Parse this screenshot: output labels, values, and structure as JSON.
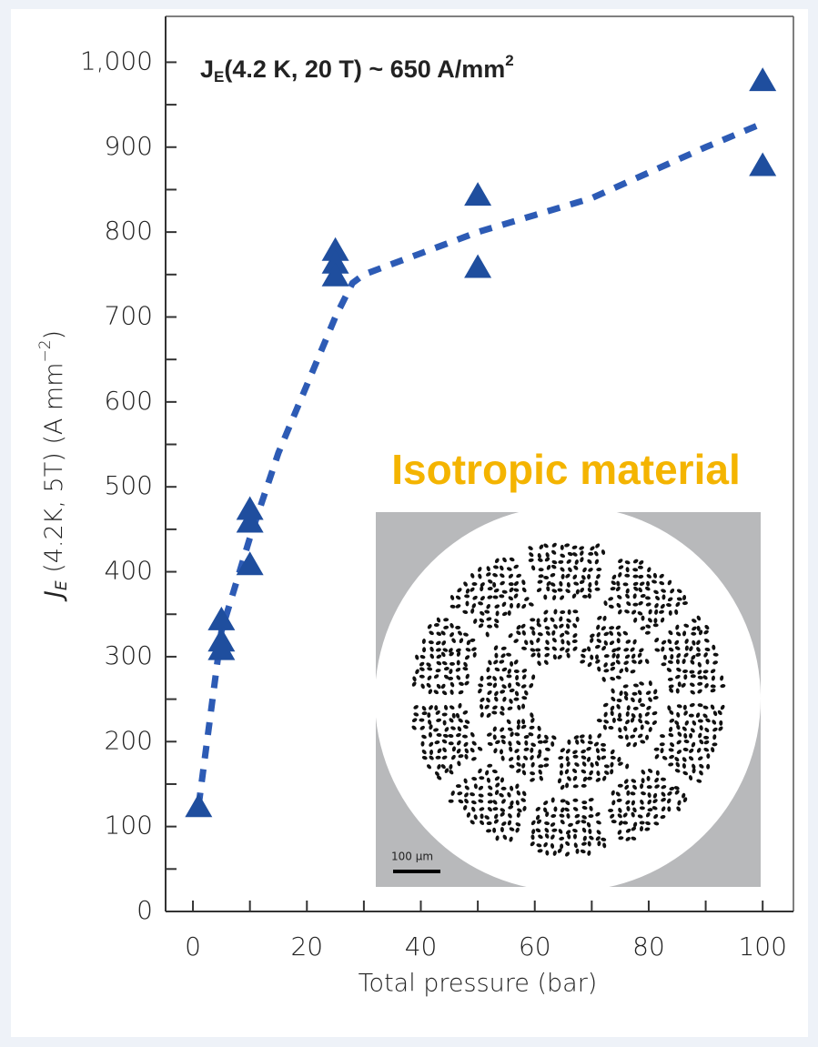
{
  "chart_data": {
    "type": "scatter",
    "annotation": {
      "main": "J",
      "sub": "E",
      "rest": "(4.2 K, 20 T) ~ 650 A/mm",
      "sup": "2"
    },
    "inset": {
      "title": "Isotropic material",
      "scale_bar": "100 µm"
    },
    "xlabel": "Total pressure (bar)",
    "ylabel": {
      "main": "J",
      "sub": "E",
      "rest": " (4.2K, 5T) (A mm",
      "sup": "−2",
      "end": ")"
    },
    "xlim": [
      -4.8,
      105.4
    ],
    "ylim": [
      0,
      1054
    ],
    "xticks": [
      0,
      20,
      40,
      60,
      80,
      100
    ],
    "xminorticks": [
      10,
      30,
      50,
      70,
      90
    ],
    "yticks": [
      0,
      100,
      200,
      300,
      400,
      500,
      600,
      700,
      800,
      900,
      {
        "value": 1000,
        "label": "1,000"
      }
    ],
    "yminorticks": [
      50,
      150,
      250,
      350,
      450,
      550,
      650,
      750,
      850,
      950
    ],
    "series": [
      {
        "type": "scatter",
        "marker": "triangle",
        "color": "#1f4e9e",
        "x": [
          1,
          5,
          5,
          5,
          10,
          10,
          10,
          25,
          25,
          25,
          50,
          50,
          100,
          100
        ],
        "values": [
          125,
          345,
          320,
          310,
          475,
          460,
          410,
          780,
          765,
          750,
          845,
          760,
          980,
          880
        ]
      },
      {
        "type": "line",
        "dashed": true,
        "color": "#2d5bb5",
        "x": [
          1,
          5,
          10,
          15,
          20,
          25,
          28,
          30,
          40,
          50,
          60,
          70,
          80,
          90,
          100
        ],
        "values": [
          125,
          330,
          440,
          540,
          620,
          700,
          740,
          750,
          775,
          800,
          820,
          840,
          870,
          900,
          928
        ]
      }
    ]
  }
}
